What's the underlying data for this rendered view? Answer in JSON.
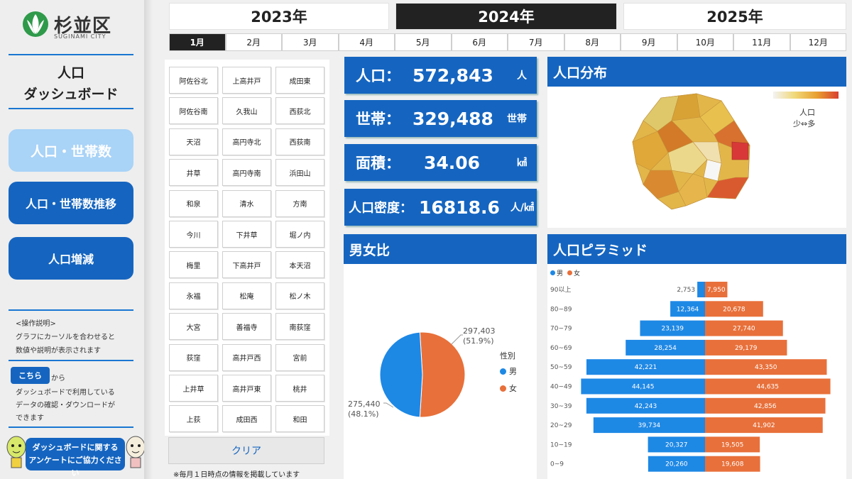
{
  "logo": {
    "name": "杉並区",
    "sub": "SUGINAMI CITY"
  },
  "sidebar": {
    "title_line1": "人口",
    "title_line2": "ダッシュボード",
    "nav": [
      {
        "label": "人口・世帯数",
        "active": true
      },
      {
        "label": "人口・世帯数推移",
        "active": false
      },
      {
        "label": "人口増減",
        "active": false
      }
    ],
    "instructions": [
      "<操作説明>",
      "グラフにカーソルを合わせると",
      "数値や説明が表示されます"
    ],
    "here_button": "こちら",
    "here_suffix": "から",
    "download_text": [
      "ダッシュボードで利用している",
      "データの確認・ダウンロードが",
      "できます"
    ],
    "survey_line1": "ダッシュボードに関する",
    "survey_line2": "アンケートにご協力ください"
  },
  "years": [
    {
      "label": "2023年",
      "active": false
    },
    {
      "label": "2024年",
      "active": true
    },
    {
      "label": "2025年",
      "active": false
    }
  ],
  "months": [
    {
      "label": "1月",
      "active": true
    },
    {
      "label": "2月"
    },
    {
      "label": "3月"
    },
    {
      "label": "4月"
    },
    {
      "label": "5月"
    },
    {
      "label": "6月"
    },
    {
      "label": "7月"
    },
    {
      "label": "8月"
    },
    {
      "label": "9月"
    },
    {
      "label": "10月"
    },
    {
      "label": "11月"
    },
    {
      "label": "12月"
    }
  ],
  "districts": [
    "阿佐谷北",
    "上高井戸",
    "成田東",
    "阿佐谷南",
    "久我山",
    "西荻北",
    "天沼",
    "高円寺北",
    "西荻南",
    "井草",
    "高円寺南",
    "浜田山",
    "和泉",
    "清水",
    "方南",
    "今川",
    "下井草",
    "堀ノ内",
    "梅里",
    "下高井戸",
    "本天沼",
    "永福",
    "松庵",
    "松ノ木",
    "大宮",
    "善福寺",
    "南荻窪",
    "荻窪",
    "高井戸西",
    "宮前",
    "上井草",
    "高井戸東",
    "桃井",
    "上荻",
    "成田西",
    "和田"
  ],
  "clear_label": "クリア",
  "footnote": "※毎月１日時点の情報を掲載しています",
  "kpis": [
    {
      "label": "人口：",
      "value": "572,843",
      "unit": "人"
    },
    {
      "label": "世帯：",
      "value": "329,488",
      "unit": "世帯"
    },
    {
      "label": "面積：",
      "value": "34.06",
      "unit": "㎢"
    },
    {
      "label": "人口密度：",
      "value": "16818.6",
      "unit": "人/㎢"
    }
  ],
  "map_panel": {
    "title": "人口分布",
    "legend_label": "人口",
    "legend_range": "少⇔多"
  },
  "gender_panel": {
    "title": "男女比",
    "legend_title": "性別",
    "female_value": "297,403",
    "female_pct": "(51.9%)",
    "male_value": "275,440",
    "male_pct": "(48.1%)",
    "male_label": "男",
    "female_label": "女"
  },
  "pyramid_panel": {
    "title": "人口ピラミッド",
    "male_label": "男",
    "female_label": "女"
  },
  "colors": {
    "male": "#1e88e5",
    "female": "#e8703a",
    "accent": "#1565c0"
  },
  "chart_data": [
    {
      "type": "pie",
      "title": "男女比",
      "legend_title": "性別",
      "categories": [
        "男",
        "女"
      ],
      "values": [
        275440,
        297403
      ],
      "percentages": [
        48.1,
        51.9
      ]
    },
    {
      "type": "bar",
      "title": "人口ピラミッド",
      "categories": [
        "90以上",
        "80~89",
        "70~79",
        "60~69",
        "50~59",
        "40~49",
        "30~39",
        "20~29",
        "10~19",
        "0~9"
      ],
      "series": [
        {
          "name": "男",
          "values": [
            2753,
            12364,
            23139,
            28254,
            42221,
            44145,
            42243,
            39734,
            20327,
            20260
          ]
        },
        {
          "name": "女",
          "values": [
            7950,
            20678,
            27740,
            29179,
            43350,
            44635,
            42856,
            41902,
            19505,
            19608
          ]
        }
      ],
      "max": 45000
    }
  ]
}
